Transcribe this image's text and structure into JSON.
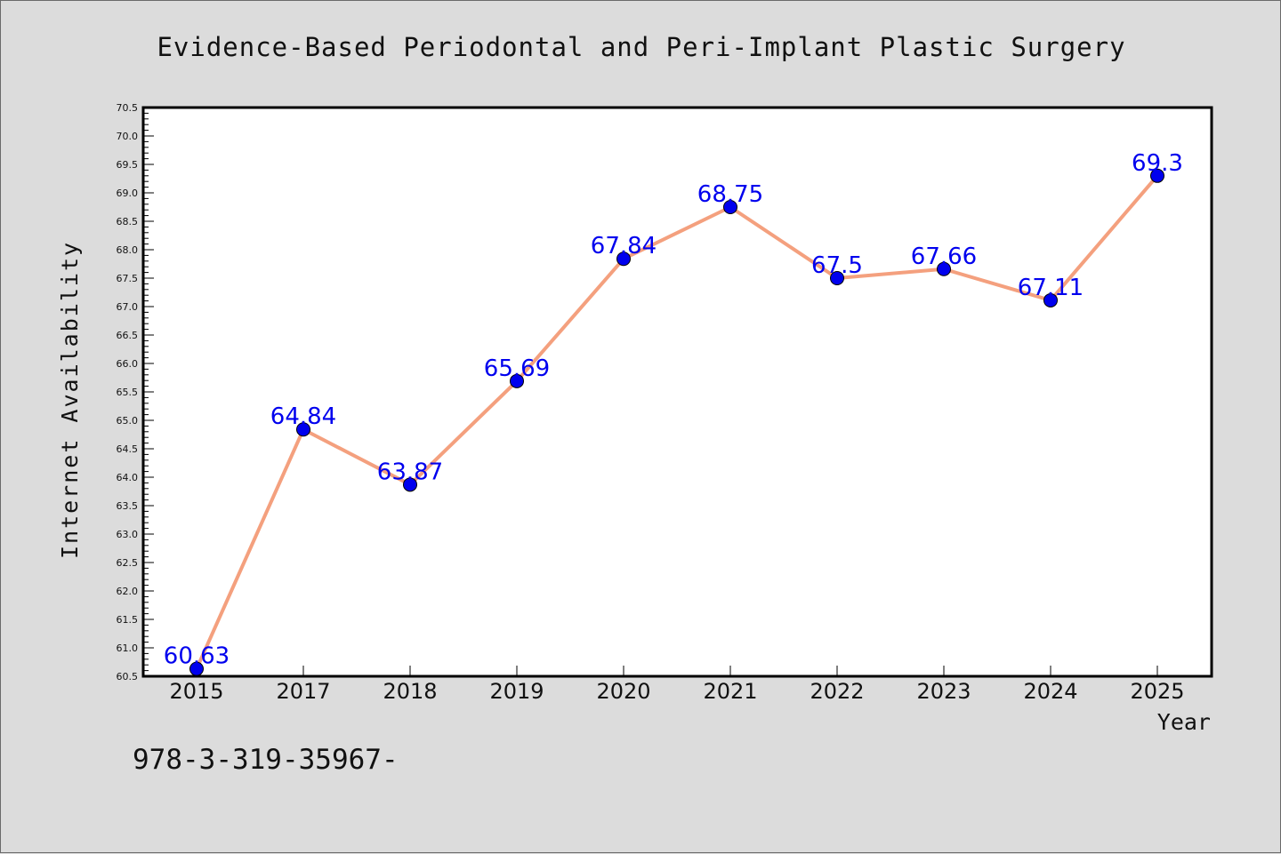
{
  "chart_data": {
    "type": "line",
    "title": "Evidence-Based Periodontal and Peri-Implant Plastic Surgery",
    "xlabel": "Year",
    "ylabel": "Internet Availability",
    "categories": [
      "2015",
      "2017",
      "2018",
      "2019",
      "2020",
      "2021",
      "2022",
      "2023",
      "2024",
      "2025"
    ],
    "values": [
      60.63,
      64.84,
      63.87,
      65.69,
      67.84,
      68.75,
      67.5,
      67.66,
      67.11,
      69.3
    ],
    "data_labels": [
      "60.63",
      "64.84",
      "63.87",
      "65.69",
      "67.84",
      "68.75",
      "67.5",
      "67.66",
      "67.11",
      "69.3"
    ],
    "ylim": [
      60.5,
      70.5
    ],
    "yticks": [
      "60.5",
      "61.0",
      "61.5",
      "62.0",
      "62.5",
      "63.0",
      "63.5",
      "64.0",
      "64.5",
      "65.0",
      "65.5",
      "66.0",
      "66.5",
      "67.0",
      "67.5",
      "68.0",
      "68.5",
      "69.0",
      "69.5",
      "70.0",
      "70.5"
    ],
    "grid": false,
    "line_color": "#f4a07e",
    "marker_color": "#0000ee",
    "label_color": "#0000ee"
  },
  "footer": {
    "text": "978-3-319-35967-"
  }
}
